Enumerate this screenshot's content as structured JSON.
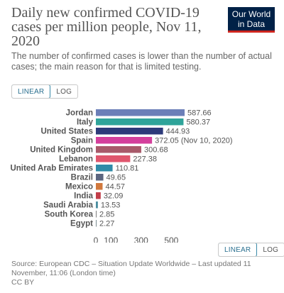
{
  "header": {
    "title": "Daily new confirmed COVID-19 cases per million people, Nov 11, 2020",
    "subtitle": "The number of confirmed cases is lower than the number of actual cases; the main reason for that is limited testing."
  },
  "logo": {
    "line1": "Our World",
    "line2": "in Data",
    "bg_color": "#002147",
    "accent_color": "#ce261e"
  },
  "scale_toggle": {
    "linear_label": "LINEAR",
    "log_label": "LOG",
    "selected": "LINEAR"
  },
  "footer": {
    "source_text": "Source: European CDC – Situation Update Worldwide – Last updated 11 November, 11:06 (London time)",
    "license": "CC BY"
  },
  "chart_data": {
    "type": "bar",
    "orientation": "horizontal",
    "categories": [
      "Jordan",
      "Italy",
      "United States",
      "Spain",
      "United Kingdom",
      "Lebanon",
      "United Arab Emirates",
      "Brazil",
      "Mexico",
      "India",
      "Saudi Arabia",
      "South Korea",
      "Egypt"
    ],
    "values": [
      587.66,
      580.37,
      444.93,
      372.05,
      300.68,
      227.38,
      110.81,
      49.65,
      44.57,
      32.09,
      13.53,
      2.85,
      2.27
    ],
    "value_labels": [
      "587.66",
      "580.37",
      "444.93",
      "372.05 (Nov 10, 2020)",
      "300.68",
      "227.38",
      "110.81",
      "49.65",
      "44.57",
      "32.09",
      "13.53",
      "2.85",
      "2.27"
    ],
    "colors": [
      "#6b7fb8",
      "#2fa49a",
      "#2d3a7a",
      "#d43f9c",
      "#a85a6a",
      "#e0566d",
      "#2f8ba8",
      "#5c6680",
      "#d1783d",
      "#c23e49",
      "#4c8fa1",
      "#7f7f7f",
      "#7a8a8f"
    ],
    "xticks": [
      0,
      100,
      300,
      500
    ],
    "xlim": [
      0,
      600
    ],
    "grid": false,
    "legend": "none"
  }
}
